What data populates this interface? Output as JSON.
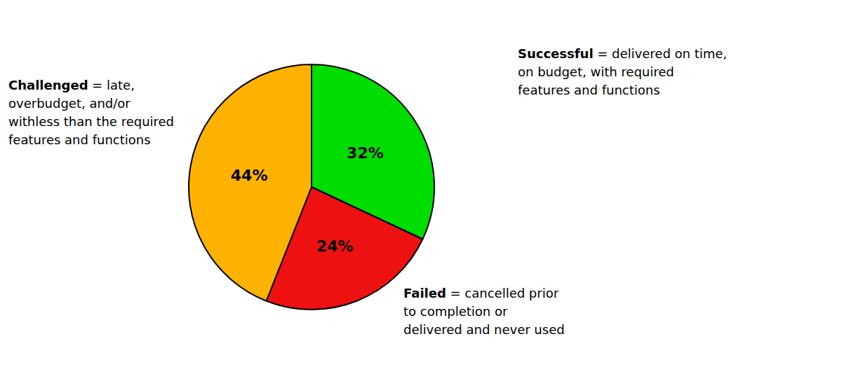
{
  "chart_data": {
    "type": "pie",
    "categories": [
      "Successful",
      "Failed",
      "Challenged"
    ],
    "values": [
      32,
      24,
      44
    ],
    "value_labels": [
      "32%",
      "24%",
      "44%"
    ],
    "colors": [
      "#00DD00",
      "#EE1111",
      "#FFB300"
    ],
    "data_labels": true,
    "annotations": [
      {
        "bold": "Successful",
        "text": " = delivered on time,\non budget, with required\nfeatures and functions"
      },
      {
        "bold": "Challenged",
        "text": " = late,\noverbudget, and/or\nwithless than the required\nfeatures and functions"
      },
      {
        "bold": "Failed",
        "text": " = cancelled prior\nto completion or\ndelivered and never used"
      }
    ]
  }
}
